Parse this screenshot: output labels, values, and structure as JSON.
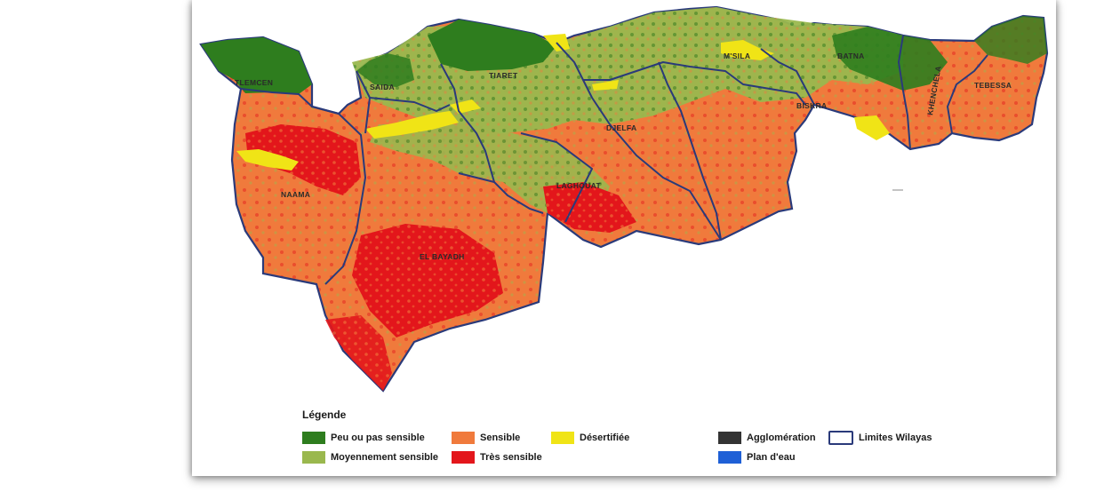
{
  "legend": {
    "title": "Légende",
    "items": [
      {
        "key": "peu",
        "label": "Peu ou pas sensible",
        "color": "#2e7d1e"
      },
      {
        "key": "moyen",
        "label": "Moyennement sensible",
        "color": "#9ab84e"
      },
      {
        "key": "sensible",
        "label": "Sensible",
        "color": "#f07a3c"
      },
      {
        "key": "tres",
        "label": "Très sensible",
        "color": "#e3161b"
      },
      {
        "key": "desert",
        "label": "Désertifiée",
        "color": "#f0e416"
      },
      {
        "key": "agglo",
        "label": "Agglomération",
        "color": "#333333"
      },
      {
        "key": "eau",
        "label": "Plan d'eau",
        "color": "#1e5fd6"
      },
      {
        "key": "limites",
        "label": "Limites Wilayas",
        "color": "#2a3a7a"
      }
    ]
  },
  "regions": [
    {
      "name": "TLEMCEN"
    },
    {
      "name": "SAIDA"
    },
    {
      "name": "TIARET"
    },
    {
      "name": "M'SILA"
    },
    {
      "name": "BATNA"
    },
    {
      "name": "KHENCHELA"
    },
    {
      "name": "TEBESSA"
    },
    {
      "name": "BISKRA"
    },
    {
      "name": "DJELFA"
    },
    {
      "name": "LAGHOUAT"
    },
    {
      "name": "NAAMA"
    },
    {
      "name": "EL BAYADH"
    }
  ]
}
